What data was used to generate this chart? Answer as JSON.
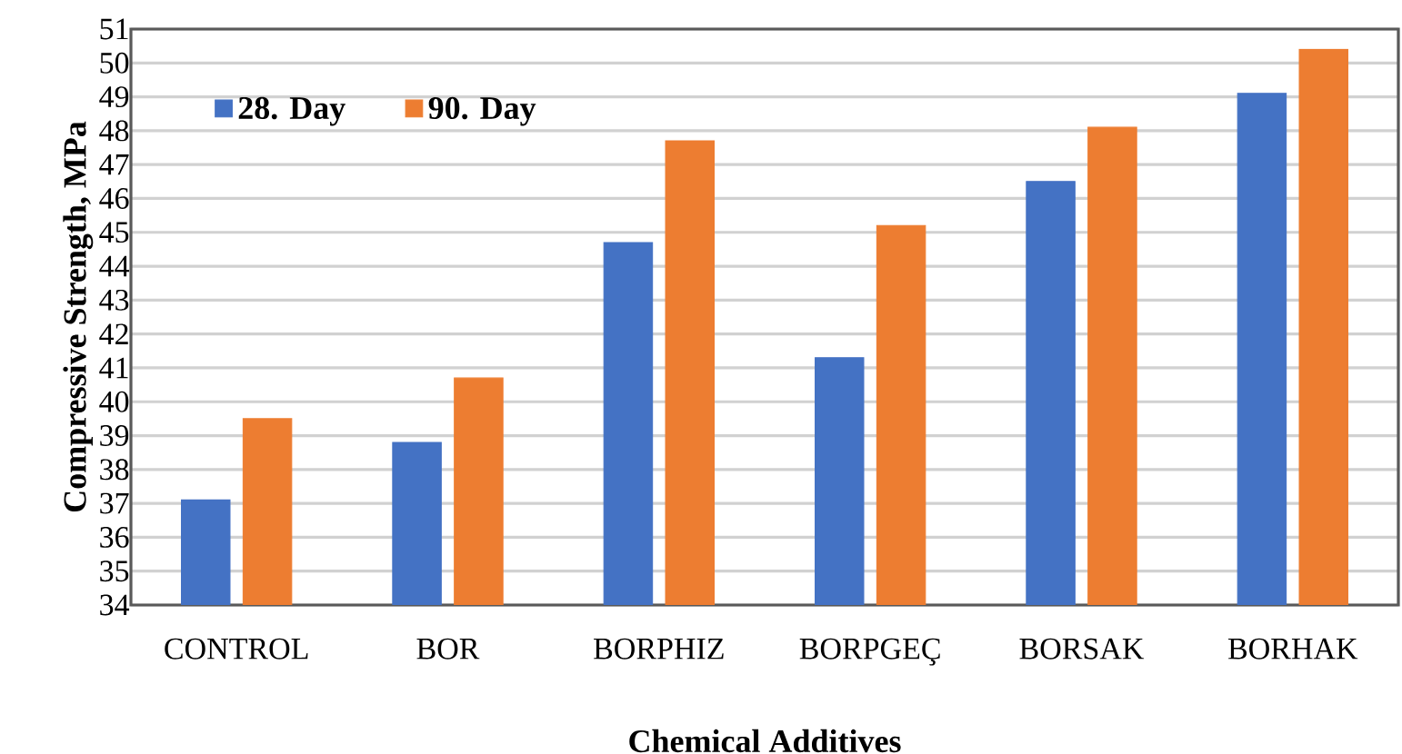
{
  "chart_data": {
    "type": "bar",
    "xlabel": "Chemical Additives",
    "ylabel": "Compressive Strength,  MPa",
    "categories": [
      "CONTROL",
      "BOR",
      "BORPHIZ",
      "BORPGEÇ",
      "BORSAK",
      "BORHAK"
    ],
    "series": [
      {
        "name": "28. Day",
        "color": "#4472c4",
        "values": [
          37.1,
          38.8,
          44.7,
          41.3,
          46.5,
          49.1
        ]
      },
      {
        "name": "90. Day",
        "color": "#ed7d31",
        "values": [
          39.5,
          40.7,
          47.7,
          45.2,
          48.1,
          50.4
        ]
      }
    ],
    "ylim": [
      34,
      51
    ],
    "yticks": [
      34,
      35,
      36,
      37,
      38,
      39,
      40,
      41,
      42,
      43,
      44,
      45,
      46,
      47,
      48,
      49,
      50,
      51
    ],
    "grid": "y",
    "legend": "top left"
  }
}
